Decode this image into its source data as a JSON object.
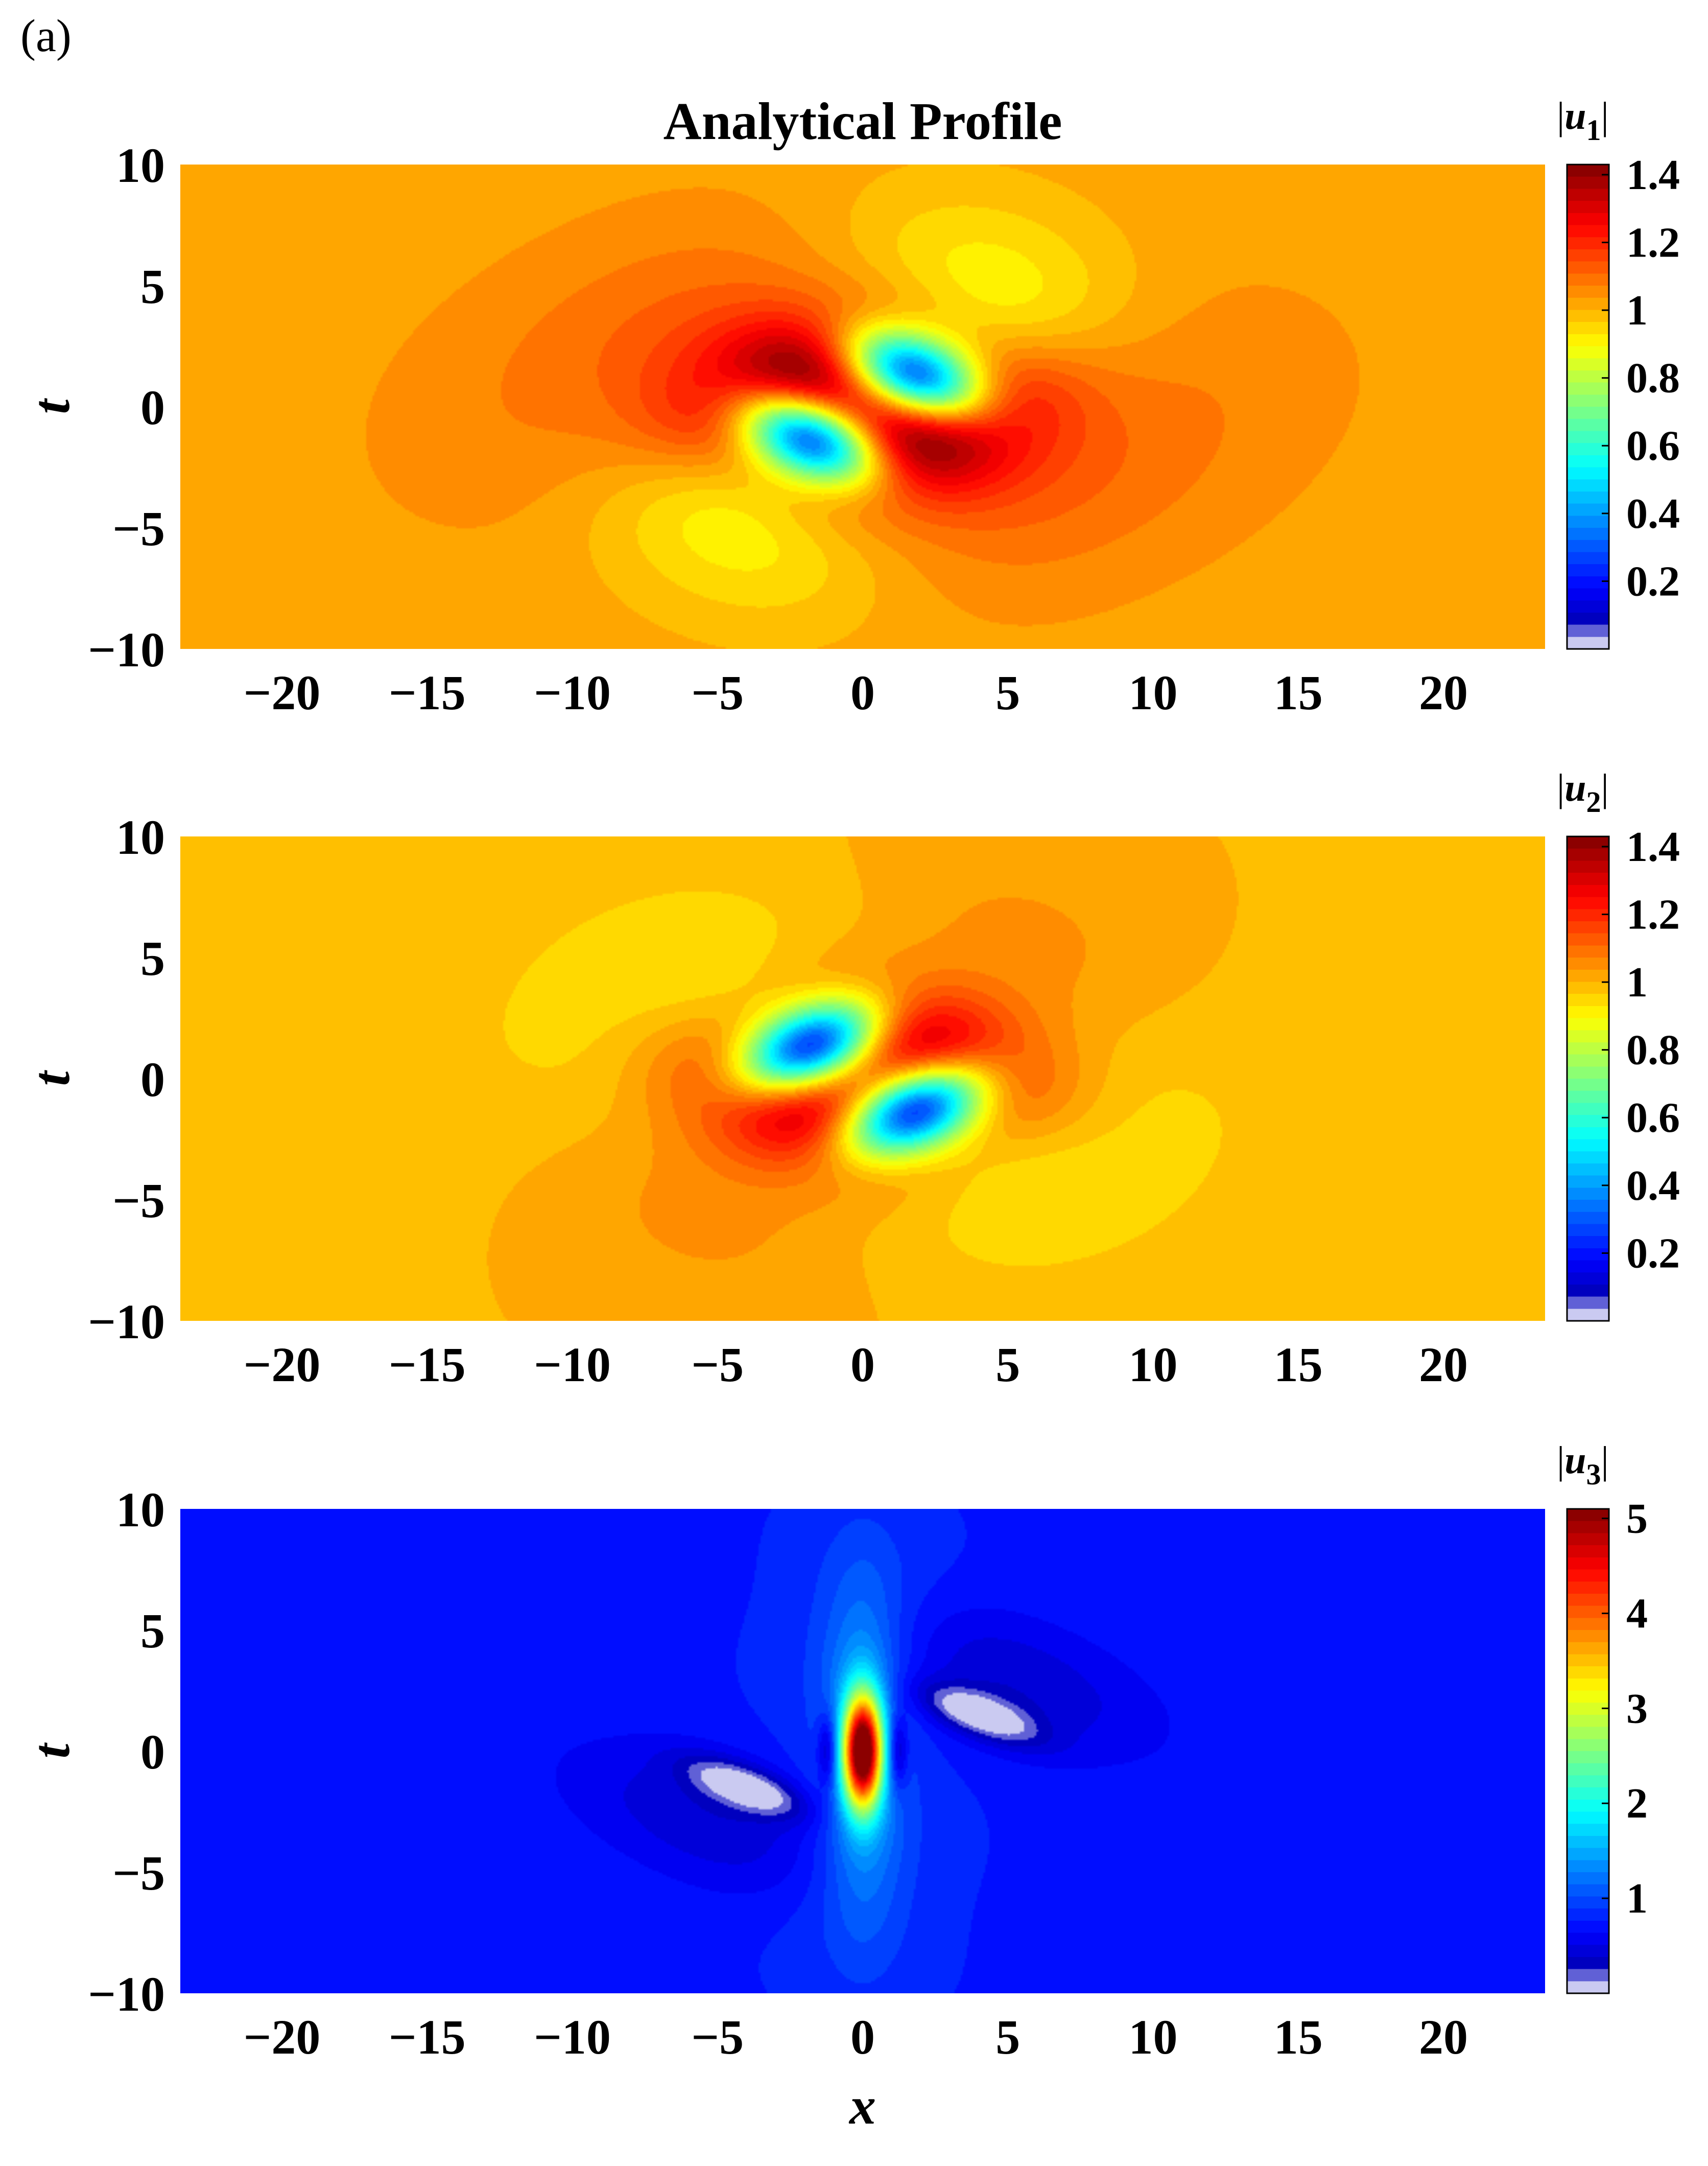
{
  "panel_label": "(a)",
  "chart_data": [
    {
      "type": "heatmap",
      "title": "Analytical Profile",
      "xlabel": "",
      "ylabel": "t",
      "colorbar_label": "|u",
      "colorbar_label_sub": "1",
      "xlim": [
        -23.5,
        23.5
      ],
      "ylim": [
        -10,
        10
      ],
      "xticks": [
        -20,
        -15,
        -10,
        -5,
        0,
        5,
        10,
        15,
        20
      ],
      "xtick_labels": [
        "−20",
        "−15",
        "−10",
        "−5",
        "0",
        "5",
        "10",
        "15",
        "20"
      ],
      "yticks": [
        10,
        5,
        0,
        -5,
        -10
      ],
      "ytick_labels": [
        "10",
        "5",
        "0",
        "−5",
        "−10"
      ],
      "colorbar_range": [
        0,
        1.43
      ],
      "colorbar_ticks": [
        1.4,
        1.2,
        1,
        0.8,
        0.6,
        0.4,
        0.2
      ],
      "colorbar_tick_labels": [
        "1.4",
        "1.2",
        "1",
        "0.8",
        "0.6",
        "0.4",
        "0.2"
      ],
      "colormap": "jet",
      "background_value": 1.02,
      "description_features": {
        "high_lobes_angle_deg": -30,
        "low_lobes_angle_deg": 30,
        "peak_value": 1.43,
        "min_value": 0.0
      }
    },
    {
      "type": "heatmap",
      "title": "",
      "xlabel": "",
      "ylabel": "t",
      "colorbar_label": "|u",
      "colorbar_label_sub": "2",
      "xlim": [
        -23.5,
        23.5
      ],
      "ylim": [
        -10,
        10
      ],
      "xticks": [
        -20,
        -15,
        -10,
        -5,
        0,
        5,
        10,
        15,
        20
      ],
      "xtick_labels": [
        "−20",
        "−15",
        "−10",
        "−5",
        "0",
        "5",
        "10",
        "15",
        "20"
      ],
      "yticks": [
        10,
        5,
        0,
        -5,
        -10
      ],
      "ytick_labels": [
        "10",
        "5",
        "0",
        "−5",
        "−10"
      ],
      "colorbar_range": [
        0,
        1.43
      ],
      "colorbar_ticks": [
        1.4,
        1.2,
        1,
        0.8,
        0.6,
        0.4,
        0.2
      ],
      "colorbar_tick_labels": [
        "1.4",
        "1.2",
        "1",
        "0.8",
        "0.6",
        "0.4",
        "0.2"
      ],
      "colormap": "jet",
      "background_value": 1.0,
      "description_features": {
        "high_lobes_angle_deg": 30,
        "low_lobes_angle_deg": -30,
        "peak_value": 1.43,
        "min_value": 0.0
      }
    },
    {
      "type": "heatmap",
      "title": "",
      "xlabel": "x",
      "ylabel": "t",
      "colorbar_label": "|u",
      "colorbar_label_sub": "3",
      "xlim": [
        -23.5,
        23.5
      ],
      "ylim": [
        -10,
        10
      ],
      "xticks": [
        -20,
        -15,
        -10,
        -5,
        0,
        5,
        10,
        15,
        20
      ],
      "xtick_labels": [
        "−20",
        "−15",
        "−10",
        "−5",
        "0",
        "5",
        "10",
        "15",
        "20"
      ],
      "yticks": [
        10,
        5,
        0,
        -5,
        -10
      ],
      "ytick_labels": [
        "10",
        "5",
        "0",
        "−5",
        "−10"
      ],
      "colorbar_range": [
        0,
        5.1
      ],
      "colorbar_ticks": [
        5,
        4,
        3,
        2,
        1
      ],
      "colorbar_tick_labels": [
        "5",
        "4",
        "3",
        "2",
        "1"
      ],
      "colormap": "jet",
      "background_value": 0.75,
      "description_features": {
        "central_peak_value": 5.0,
        "central_peak_location": [
          0,
          0
        ],
        "dark_spots_locations": [
          [
            -4,
            -1.5
          ],
          [
            4,
            1.5
          ]
        ],
        "min_value": 0.0
      }
    }
  ]
}
